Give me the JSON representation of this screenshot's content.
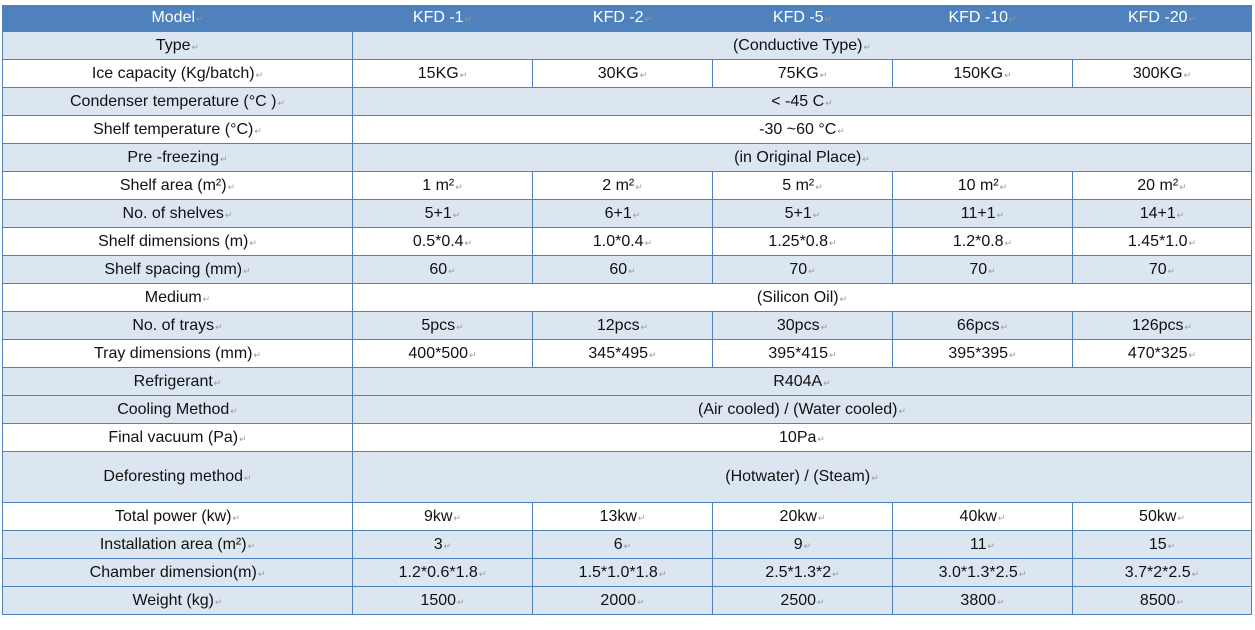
{
  "header": {
    "label": "Model",
    "models": [
      "KFD -1",
      "KFD -2",
      "KFD -5",
      "KFD -10",
      "KFD -20"
    ]
  },
  "rows": [
    {
      "label": "Type",
      "merged": "(Conductive Type)",
      "shade": "light"
    },
    {
      "label": "Ice capacity (Kg/batch)",
      "values": [
        "15KG",
        "30KG",
        "75KG",
        "150KG",
        "300KG"
      ],
      "shade": "white"
    },
    {
      "label": "Condenser temperature (°C )",
      "merged": "< -45 C",
      "shade": "light"
    },
    {
      "label": "Shelf temperature (°C)",
      "merged": "-30 ~60 °C",
      "shade": "white"
    },
    {
      "label": "Pre -freezing",
      "merged": "(in Original Place)",
      "shade": "light"
    },
    {
      "label": "Shelf area (m²)",
      "values": [
        "1 m²",
        "2 m²",
        "5 m²",
        "10 m²",
        "20 m²"
      ],
      "shade": "white"
    },
    {
      "label": "No. of shelves",
      "values": [
        "5+1",
        "6+1",
        "5+1",
        "11+1",
        "14+1"
      ],
      "shade": "light"
    },
    {
      "label": "Shelf dimensions (m)",
      "values": [
        "0.5*0.4",
        "1.0*0.4",
        "1.25*0.8",
        "1.2*0.8",
        "1.45*1.0"
      ],
      "shade": "white"
    },
    {
      "label": "Shelf spacing (mm)",
      "values": [
        "60",
        "60",
        "70",
        "70",
        "70"
      ],
      "shade": "light"
    },
    {
      "label": "Medium",
      "merged": "(Silicon Oil)",
      "shade": "white"
    },
    {
      "label": "No. of trays",
      "values": [
        "5pcs",
        "12pcs",
        "30pcs",
        "66pcs",
        "126pcs"
      ],
      "shade": "light"
    },
    {
      "label": "Tray dimensions (mm)",
      "values": [
        "400*500",
        "345*495",
        "395*415",
        "395*395",
        "470*325"
      ],
      "shade": "white"
    },
    {
      "label": "Refrigerant",
      "merged": "R404A",
      "shade": "light"
    },
    {
      "label": "Cooling Method",
      "merged": "(Air cooled) / (Water cooled)",
      "shade": "light"
    },
    {
      "label": "Final vacuum (Pa)",
      "merged": "10Pa",
      "shade": "white"
    },
    {
      "label": "Deforesting method",
      "merged": "(Hotwater) / (Steam)",
      "shade": "light"
    },
    {
      "label": "Total power (kw)",
      "values": [
        "9kw",
        "13kw",
        "20kw",
        "40kw",
        "50kw"
      ],
      "shade": "white"
    },
    {
      "label": "Installation area (m²)",
      "values": [
        "3",
        "6",
        "9",
        "11",
        "15"
      ],
      "shade": "light"
    },
    {
      "label": "Chamber dimension(m)",
      "values": [
        "1.2*0.6*1.8",
        "1.5*1.0*1.8",
        "2.5*1.3*2",
        "3.0*1.3*2.5",
        "3.7*2*2.5"
      ],
      "shade": "light"
    },
    {
      "label": "Weight (kg)",
      "values": [
        "1500",
        "2000",
        "2500",
        "3800",
        "8500"
      ],
      "shade": "light"
    }
  ],
  "colors": {
    "header_bg": "#4f81bd",
    "row_light": "#dce6f1",
    "row_white": "#ffffff"
  }
}
